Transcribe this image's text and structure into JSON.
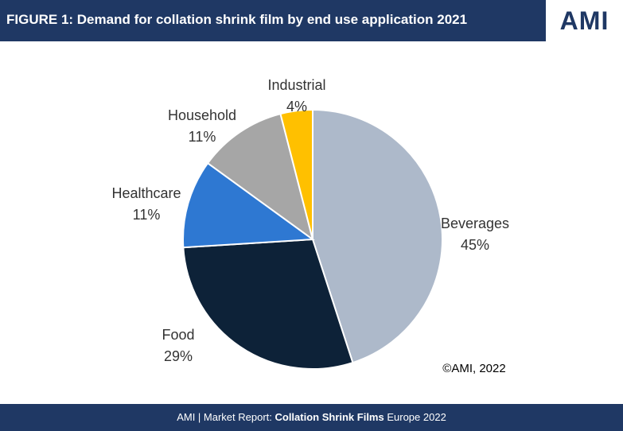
{
  "chart_data": {
    "type": "pie",
    "title": "FIGURE 1: Demand for collation shrink film by end use application 2021",
    "categories": [
      "Beverages",
      "Food",
      "Healthcare",
      "Household",
      "Industrial"
    ],
    "values": [
      45,
      29,
      11,
      11,
      4
    ],
    "value_labels": [
      "45%",
      "29%",
      "11%",
      "11%",
      "4%"
    ],
    "colors": [
      "#adb9ca",
      "#0d2238",
      "#2e78d2",
      "#a6a6a6",
      "#ffc000"
    ],
    "annotation": "©AMI, 2022"
  },
  "logo": "AMI",
  "footer": {
    "prefix": "AMI | Market Report: ",
    "bold": "Collation Shrink Films",
    "suffix": " Europe 2022"
  }
}
